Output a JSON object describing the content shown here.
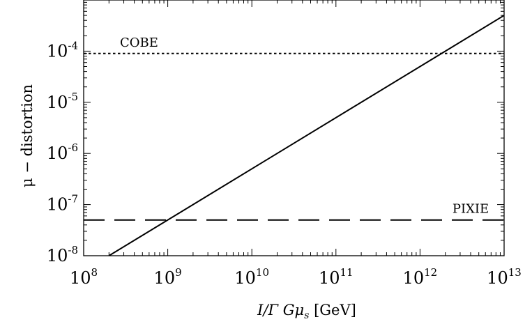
{
  "chart_data": {
    "type": "line",
    "title": "",
    "xlabel": "I/Γ Gμ_s [GeV]",
    "xlabel_parts": {
      "var": "I/Γ Gμ",
      "sub": "s",
      "unit": " [GeV]"
    },
    "ylabel": "μ − distortion",
    "xscale": "log",
    "yscale": "log",
    "xlim": [
      100000000.0,
      10000000000000.0
    ],
    "ylim": [
      1e-08,
      0.001
    ],
    "x_ticks": [
      {
        "base": "10",
        "exp": "8"
      },
      {
        "base": "10",
        "exp": "9"
      },
      {
        "base": "10",
        "exp": "10"
      },
      {
        "base": "10",
        "exp": "11"
      },
      {
        "base": "10",
        "exp": "12"
      },
      {
        "base": "10",
        "exp": "13"
      }
    ],
    "y_ticks": [
      {
        "base": "10",
        "exp": "-8"
      },
      {
        "base": "10",
        "exp": "-7"
      },
      {
        "base": "10",
        "exp": "-6"
      },
      {
        "base": "10",
        "exp": "-5"
      },
      {
        "base": "10",
        "exp": "-4"
      }
    ],
    "grid": false,
    "series": [
      {
        "style": "solid",
        "x": [
          200000000.0,
          10000000000000.0
        ],
        "y": [
          1e-08,
          0.0005
        ]
      }
    ],
    "reference_lines": [
      {
        "label": "COBE",
        "y": 9e-05,
        "style": "dotted"
      },
      {
        "label": "PIXIE",
        "y": 5e-08,
        "style": "dashed"
      }
    ],
    "colors": {
      "line": "#000000",
      "background": "#ffffff"
    }
  }
}
